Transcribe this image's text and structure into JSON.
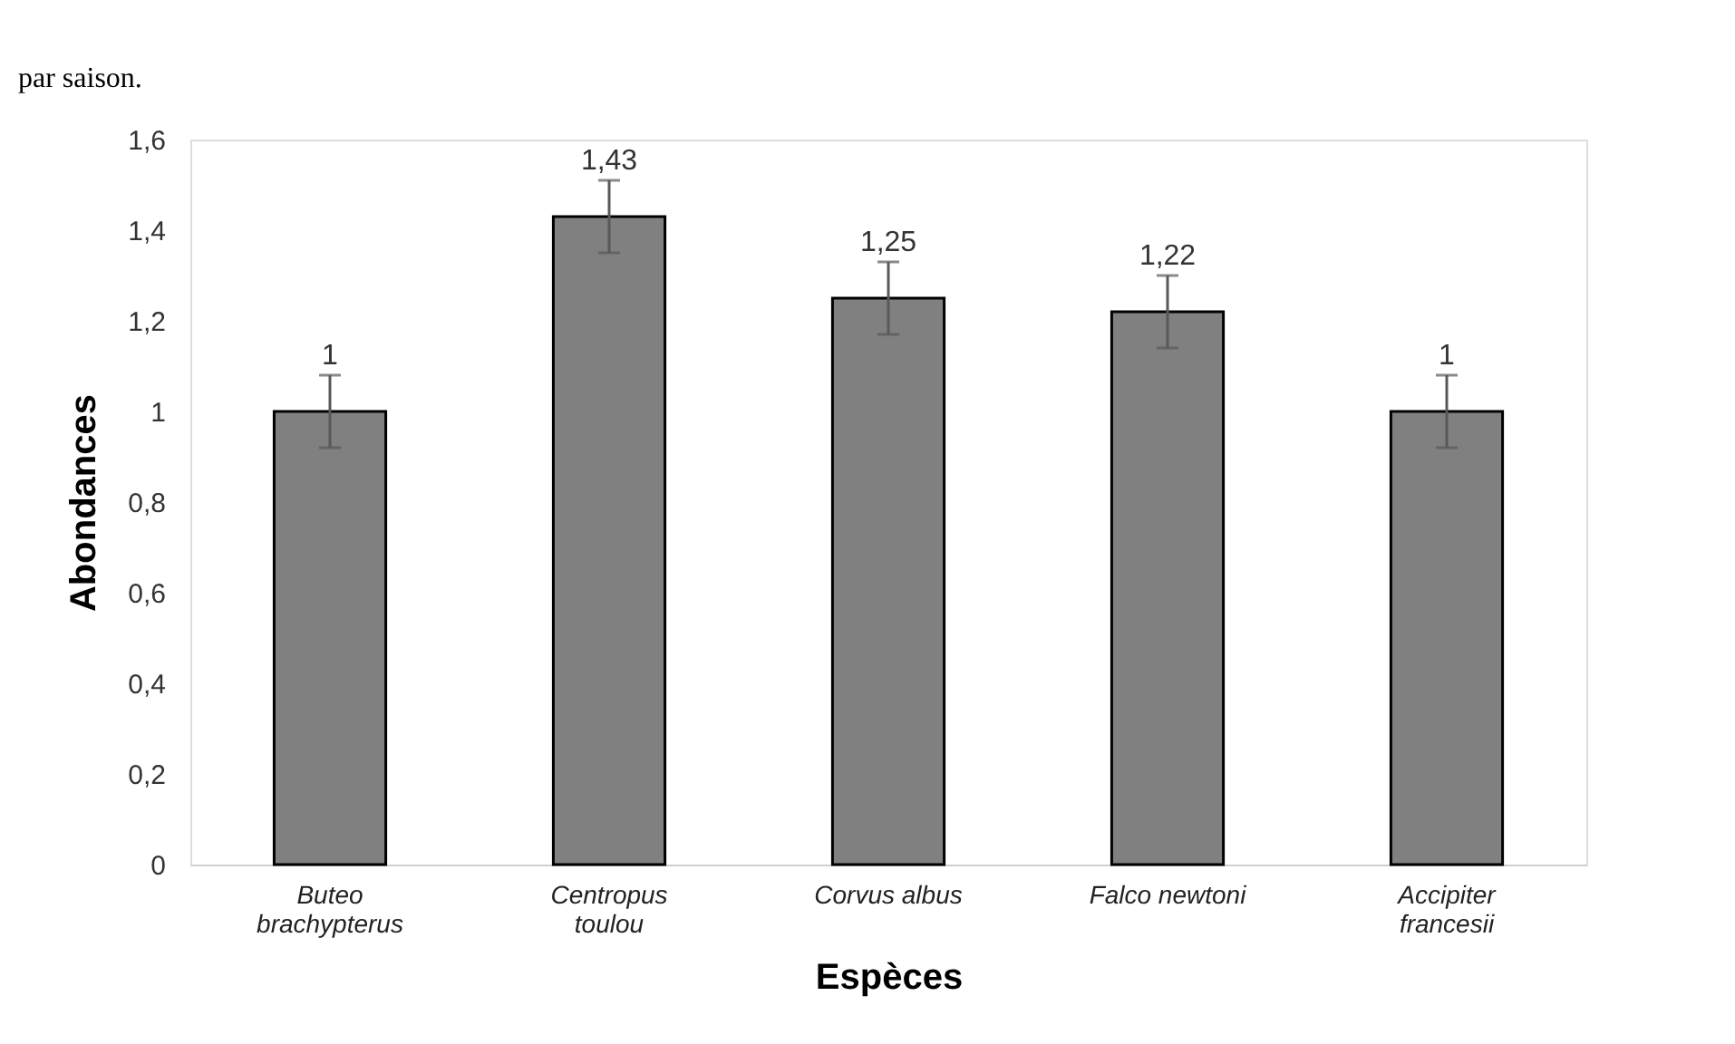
{
  "chart_data": {
    "type": "bar",
    "annotations": [
      "par saison."
    ],
    "xlabel": "Espèces",
    "ylabel": "Abondances",
    "categories": [
      "Buteo brachypterus",
      "Centropus toulou",
      "Corvus albus",
      "Falco newtoni",
      "Accipiter francesii"
    ],
    "values": [
      1,
      1.43,
      1.25,
      1.22,
      1
    ],
    "errors": [
      0.08,
      0.08,
      0.08,
      0.08,
      0.08
    ],
    "value_labels": [
      "1",
      "1,43",
      "1,25",
      "1,22",
      "1"
    ],
    "color": "#808080",
    "ylim": [
      0,
      1.6
    ],
    "yticks": [
      0,
      {
        "value": 0.2,
        "label": "0,2"
      },
      {
        "value": 0.4,
        "label": "0,4"
      },
      {
        "value": 0.6,
        "label": "0,6"
      },
      {
        "value": 0.8,
        "label": "0,8"
      },
      1,
      {
        "value": 1.2,
        "label": "1,2"
      },
      {
        "value": 1.4,
        "label": "1,4"
      },
      {
        "value": 1.6,
        "label": "1,6"
      }
    ],
    "grid": false
  }
}
